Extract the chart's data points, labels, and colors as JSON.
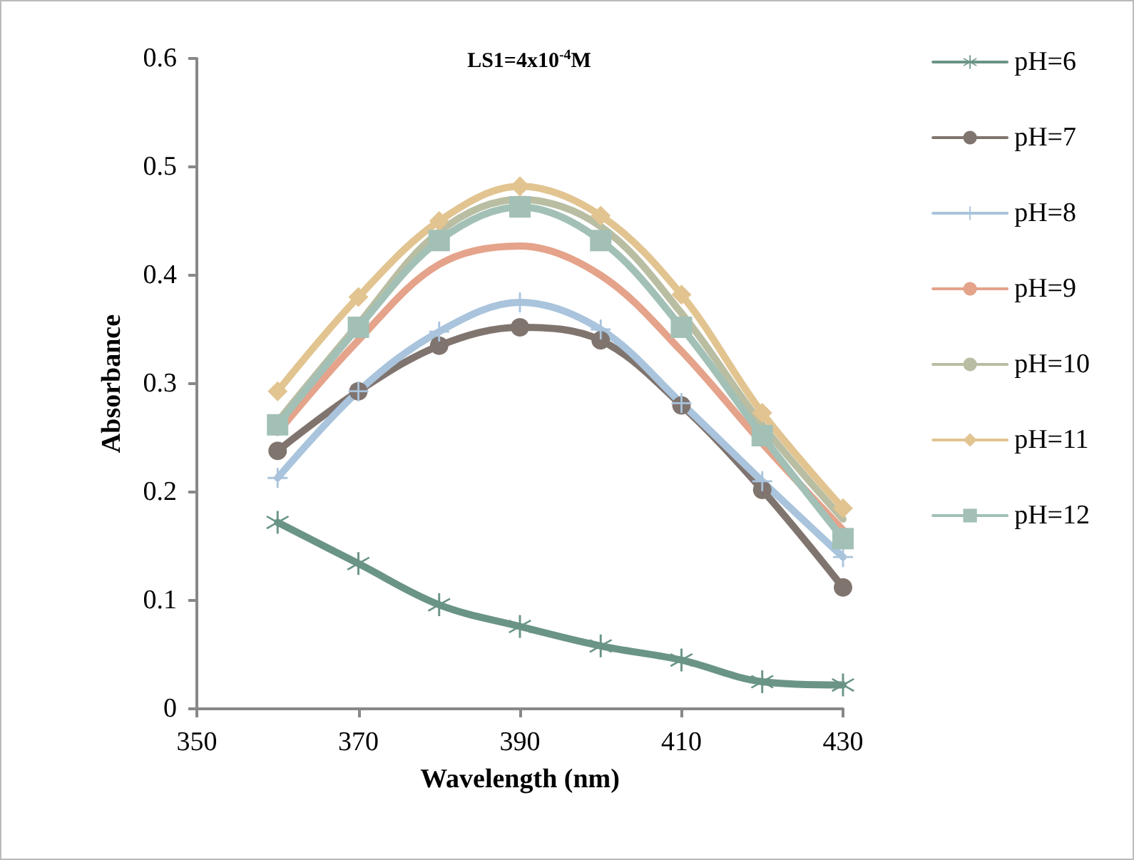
{
  "chart_data": {
    "type": "line",
    "title": "LS1=4x10$^{-4}$M",
    "xlabel": "Wavelength (nm)",
    "ylabel": "Absorbance",
    "x": [
      360,
      370,
      380,
      390,
      400,
      410,
      420,
      430
    ],
    "series": [
      {
        "name": "pH=6",
        "color": "#6a9486",
        "marker": "star",
        "values": [
          0.172,
          0.134,
          0.096,
          0.076,
          0.058,
          0.045,
          0.025,
          0.022
        ]
      },
      {
        "name": "pH=7",
        "color": "#80746f",
        "marker": "circle",
        "values": [
          0.238,
          0.293,
          0.335,
          0.352,
          0.34,
          0.28,
          0.202,
          0.112
        ]
      },
      {
        "name": "pH=8",
        "color": "#a9c4dc",
        "marker": "cross",
        "values": [
          0.213,
          0.293,
          0.348,
          0.375,
          0.35,
          0.282,
          0.21,
          0.14
        ]
      },
      {
        "name": "pH=9",
        "color": "#e4a38a",
        "marker": "none",
        "values": [
          0.255,
          0.34,
          0.41,
          0.427,
          0.4,
          0.33,
          0.245,
          0.165
        ]
      },
      {
        "name": "pH=10",
        "color": "#b9bea3",
        "marker": "none",
        "values": [
          0.265,
          0.355,
          0.44,
          0.47,
          0.445,
          0.365,
          0.262,
          0.175
        ]
      },
      {
        "name": "pH=11",
        "color": "#e2c491",
        "marker": "diamond",
        "values": [
          0.293,
          0.38,
          0.45,
          0.482,
          0.455,
          0.382,
          0.273,
          0.185
        ]
      },
      {
        "name": "pH=12",
        "color": "#a2c0b6",
        "marker": "square",
        "values": [
          0.262,
          0.352,
          0.432,
          0.463,
          0.432,
          0.352,
          0.252,
          0.157
        ]
      }
    ],
    "xlim": [
      350,
      430
    ],
    "xticks": [
      350,
      370,
      390,
      410,
      430
    ],
    "ylim": [
      0,
      0.6
    ],
    "yticks": [
      0,
      0.1,
      0.2,
      0.3,
      0.4,
      0.5,
      0.6
    ],
    "grid": false,
    "legend": "right"
  }
}
